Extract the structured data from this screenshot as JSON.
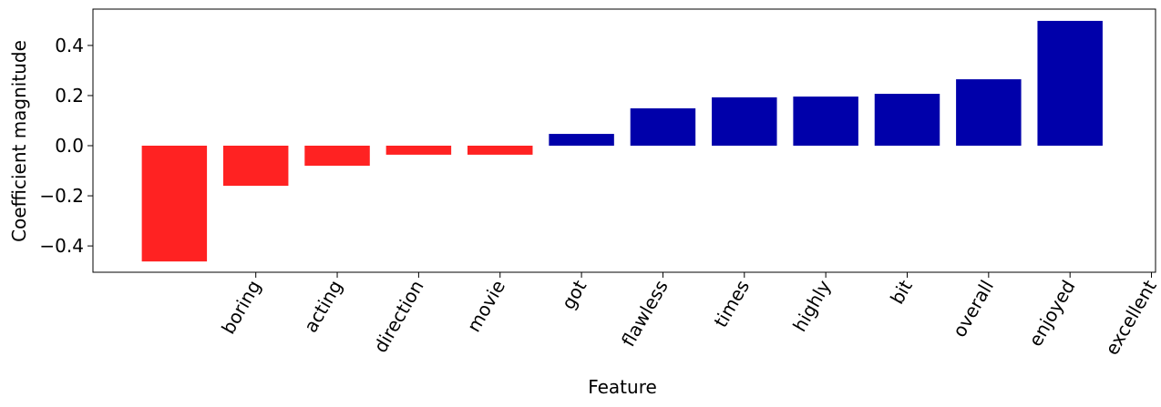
{
  "chart_data": {
    "type": "bar",
    "x_label": "Feature",
    "y_label": "Coefficient magnitude",
    "x": [
      0,
      1,
      2,
      3,
      4,
      5,
      6,
      7,
      8,
      9,
      10,
      11
    ],
    "values": [
      -0.462,
      -0.16,
      -0.08,
      -0.036,
      -0.036,
      0.047,
      0.149,
      0.193,
      0.196,
      0.207,
      0.265,
      0.498
    ],
    "colors": [
      "#ff2222",
      "#ff2222",
      "#ff2222",
      "#ff2222",
      "#ff2222",
      "#0000aa",
      "#0000aa",
      "#0000aa",
      "#0000aa",
      "#0000aa",
      "#0000aa",
      "#0000aa"
    ],
    "bar_width": 0.8,
    "xlim": [
      -1,
      12.05
    ],
    "xticks": [
      {
        "value": 1,
        "label": "boring"
      },
      {
        "value": 2,
        "label": "acting"
      },
      {
        "value": 3,
        "label": "direction"
      },
      {
        "value": 4,
        "label": "movie"
      },
      {
        "value": 5,
        "label": "got"
      },
      {
        "value": 6,
        "label": "flawless"
      },
      {
        "value": 7,
        "label": "times"
      },
      {
        "value": 8,
        "label": "highly"
      },
      {
        "value": 9,
        "label": "bit"
      },
      {
        "value": 10,
        "label": "overall"
      },
      {
        "value": 11,
        "label": "enjoyed"
      },
      {
        "value": 12,
        "label": "excellent"
      }
    ],
    "ylim": [
      -0.505,
      0.545
    ],
    "yticks": [
      {
        "value": -0.4,
        "label": "−0.4"
      },
      {
        "value": -0.2,
        "label": "−0.2"
      },
      {
        "value": 0,
        "label": "0.0"
      },
      0.2,
      0.4
    ],
    "grid": false
  }
}
